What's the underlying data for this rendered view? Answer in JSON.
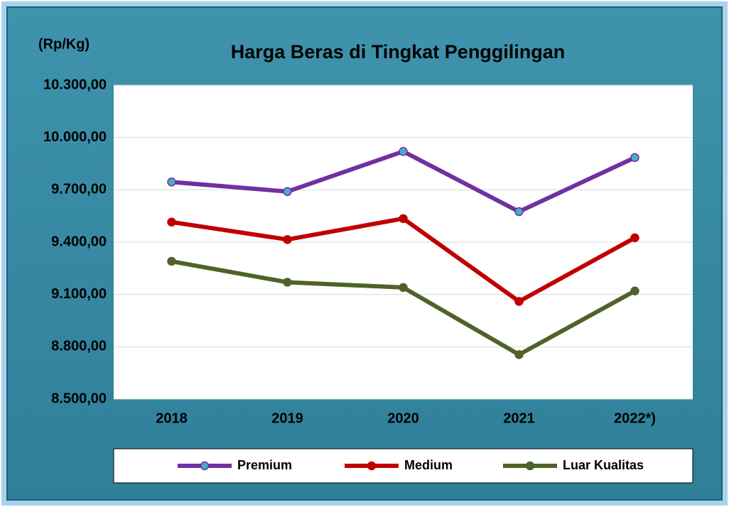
{
  "chart_data": {
    "type": "line",
    "title": "Harga Beras di Tingkat Penggilingan",
    "unit_label": "(Rp/Kg)",
    "categories": [
      "2018",
      "2019",
      "2020",
      "2021",
      "2022*)"
    ],
    "series": [
      {
        "name": "Premium",
        "color": "#7030a0",
        "marker_color": "#4bacc6",
        "values": [
          9745,
          9690,
          9920,
          9575,
          9885
        ]
      },
      {
        "name": "Medium",
        "color": "#c00000",
        "marker_color": "#c00000",
        "values": [
          9515,
          9415,
          9535,
          9060,
          9425
        ]
      },
      {
        "name": "Luar Kualitas",
        "color": "#4f6228",
        "marker_color": "#4f6228",
        "values": [
          9290,
          9170,
          9140,
          8755,
          9120
        ]
      }
    ],
    "ylim": [
      8500,
      10300
    ],
    "yticks": [
      {
        "value": 8500,
        "label": "8.500,00"
      },
      {
        "value": 8800,
        "label": "8.800,00"
      },
      {
        "value": 9100,
        "label": "9.100,00"
      },
      {
        "value": 9400,
        "label": "9.400,00"
      },
      {
        "value": 9700,
        "label": "9.700,00"
      },
      {
        "value": 10000,
        "label": "10.000,00"
      },
      {
        "value": 10300,
        "label": "10.300,00"
      }
    ],
    "grid": true,
    "legend": "bottom"
  }
}
